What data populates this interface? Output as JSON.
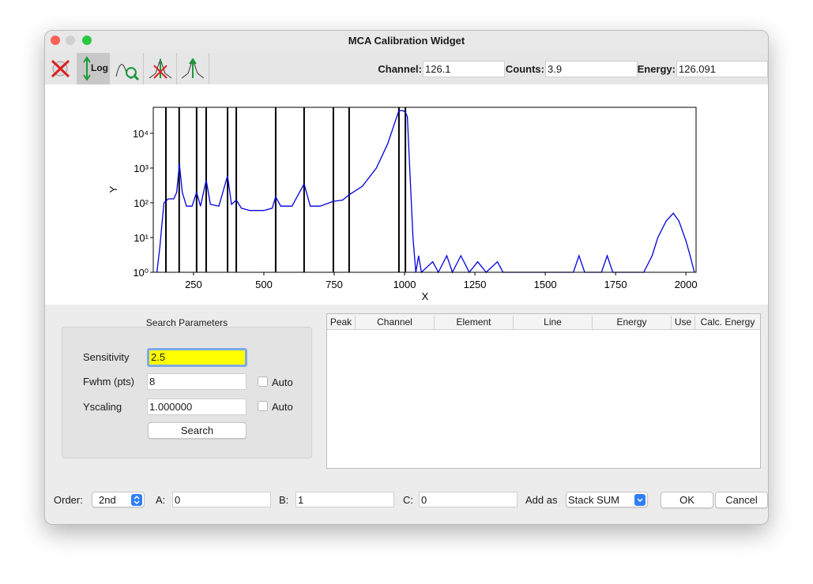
{
  "window": {
    "title": "MCA Calibration Widget"
  },
  "toolbar": {
    "log_button": "Log",
    "fields": [
      {
        "label": "Channel:",
        "value": "126.1"
      },
      {
        "label": "Counts:",
        "value": "3.9"
      },
      {
        "label": "Energy:",
        "value": "126.091"
      }
    ]
  },
  "chart_data": {
    "type": "line",
    "xlabel": "X",
    "ylabel": "Y",
    "color": "#0000dd",
    "marker_color": "#000000",
    "log_y": true,
    "x": [
      120,
      130,
      145,
      160,
      180,
      190,
      200,
      210,
      225,
      245,
      261,
      275,
      295,
      310,
      340,
      371,
      385,
      402,
      420,
      450,
      500,
      530,
      542,
      560,
      600,
      643,
      665,
      700,
      747,
      780,
      803,
      850,
      900,
      940,
      965,
      980,
      995,
      1003,
      1010,
      1020,
      1030,
      1040,
      1050,
      1060,
      1100,
      1120,
      1150,
      1170,
      1200,
      1230,
      1260,
      1290,
      1330,
      1350,
      1600,
      1620,
      1640,
      1700,
      1720,
      1740,
      1800,
      1850,
      1880,
      1900,
      1930,
      1955,
      1975,
      2000,
      2015,
      2030
    ],
    "values": [
      1,
      5,
      100,
      130,
      130,
      200,
      1300,
      200,
      80,
      80,
      200,
      80,
      450,
      90,
      80,
      600,
      90,
      120,
      70,
      60,
      60,
      70,
      150,
      80,
      80,
      350,
      80,
      80,
      110,
      120,
      170,
      300,
      1000,
      5000,
      20000,
      45000,
      45000,
      40000,
      30000,
      500,
      10,
      1,
      3,
      1,
      2,
      1,
      3,
      1,
      3,
      1,
      2,
      1,
      2,
      1,
      1,
      3,
      1,
      1,
      3,
      1,
      1,
      1,
      3,
      10,
      30,
      50,
      30,
      8,
      3,
      1
    ],
    "markers": [
      152,
      199,
      261,
      295,
      371,
      402,
      542,
      643,
      747,
      803,
      980,
      1003
    ],
    "xlim": [
      107,
      2036
    ],
    "xticks": [
      250,
      500,
      750,
      1000,
      1250,
      1500,
      1750,
      2000
    ],
    "ylim": [
      1,
      56000
    ],
    "yticks": [
      {
        "value": 1,
        "label": "10⁰"
      },
      {
        "value": 10,
        "label": "10¹"
      },
      {
        "value": 100,
        "label": "10²"
      },
      {
        "value": 1000,
        "label": "10³"
      },
      {
        "value": 10000,
        "label": "10⁴"
      }
    ]
  },
  "search": {
    "title": "Search Parameters",
    "sensitivity": {
      "label": "Sensitivity",
      "value": "2.5"
    },
    "fwhm": {
      "label": "Fwhm (pts)",
      "value": "8",
      "auto": "Auto"
    },
    "yscaling": {
      "label": "Yscaling",
      "value": "1.000000",
      "auto": "Auto"
    },
    "button": "Search"
  },
  "table": {
    "columns": [
      "Peak",
      "Channel",
      "Element",
      "Line",
      "Energy",
      "Use",
      "Calc. Energy"
    ]
  },
  "bottom": {
    "order_label": "Order:",
    "order_value": "2nd",
    "a_label": "A:",
    "a_value": "0",
    "b_label": "B:",
    "b_value": "1",
    "c_label": "C:",
    "c_value": "0",
    "add_label": "Add as",
    "add_value": "Stack SUM",
    "ok": "OK",
    "cancel": "Cancel"
  }
}
